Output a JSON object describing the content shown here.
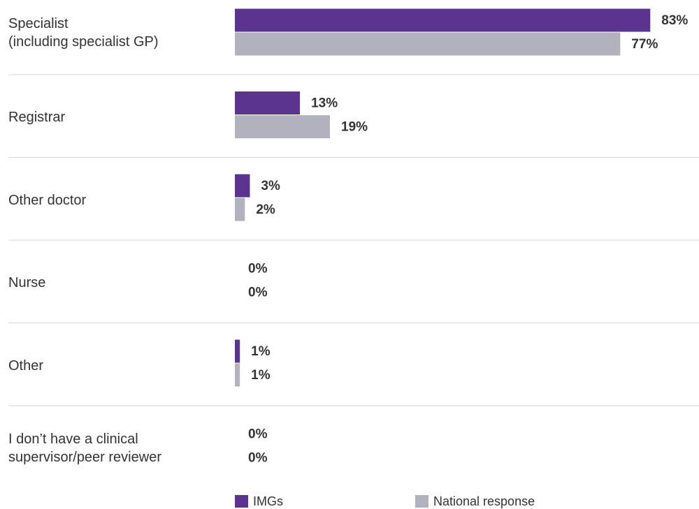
{
  "chart_data": {
    "type": "bar",
    "orientation": "horizontal",
    "categories": [
      "Specialist\n(including specialist GP)",
      "Registrar",
      "Other doctor",
      "Nurse",
      "Other",
      "I don’t have a clinical\nsupervisor/peer reviewer"
    ],
    "series": [
      {
        "name": "IMGs",
        "color": "#5b3490",
        "values": [
          83,
          13,
          3,
          0,
          1,
          0
        ],
        "value_labels": [
          "83%",
          "13%",
          "3%",
          "0%",
          "1%",
          "0%"
        ]
      },
      {
        "name": "National response",
        "color": "#b2b2bf",
        "values": [
          77,
          19,
          2,
          0,
          1,
          0
        ],
        "value_labels": [
          "77%",
          "19%",
          "2%",
          "0%",
          "1%",
          "0%"
        ]
      }
    ]
  }
}
